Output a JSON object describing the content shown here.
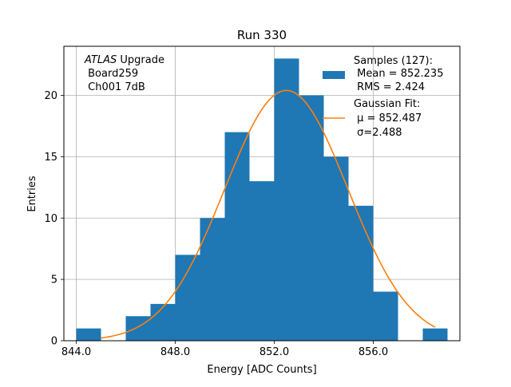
{
  "chart_data": {
    "type": "bar",
    "title": "Run 330",
    "xlabel": "Energy [ADC Counts]",
    "ylabel": "Entries",
    "xlim": [
      843.5,
      859.5
    ],
    "ylim": [
      0,
      24
    ],
    "xticks": [
      844.0,
      848.0,
      852.0,
      856.0
    ],
    "xtick_labels": [
      "844.0",
      "848.0",
      "852.0",
      "856.0"
    ],
    "yticks": [
      0,
      5,
      10,
      15,
      20
    ],
    "ytick_labels": [
      "0",
      "5",
      "10",
      "15",
      "20"
    ],
    "grid": true,
    "bin_width": 1,
    "bins": [
      {
        "x": 844,
        "value": 1
      },
      {
        "x": 845,
        "value": 0
      },
      {
        "x": 846,
        "value": 2
      },
      {
        "x": 847,
        "value": 3
      },
      {
        "x": 848,
        "value": 7
      },
      {
        "x": 849,
        "value": 10
      },
      {
        "x": 850,
        "value": 17
      },
      {
        "x": 851,
        "value": 13
      },
      {
        "x": 852,
        "value": 23
      },
      {
        "x": 853,
        "value": 20
      },
      {
        "x": 854,
        "value": 15
      },
      {
        "x": 855,
        "value": 11
      },
      {
        "x": 856,
        "value": 4
      },
      {
        "x": 857,
        "value": 0
      },
      {
        "x": 858,
        "value": 1
      }
    ],
    "fit": {
      "mu": 852.487,
      "sigma": 2.488,
      "amplitude": 20.4,
      "x_range": [
        845.0,
        858.5
      ]
    },
    "colors": {
      "bars": "#1f77b4",
      "fit": "#ff7f0e",
      "grid": "#b0b0b0"
    },
    "legend": {
      "position": "top-right",
      "samples_lines": [
        "Samples (127):",
        " Mean = 852.235",
        " RMS = 2.424"
      ],
      "fit_lines": [
        "Gaussian Fit:",
        " μ = 852.487",
        " σ=2.488"
      ]
    },
    "annotation": {
      "line1_italic": "ATLAS",
      "line1_rest": " Upgrade",
      "line2": " Board259",
      "line3": " Ch001 7dB"
    }
  }
}
